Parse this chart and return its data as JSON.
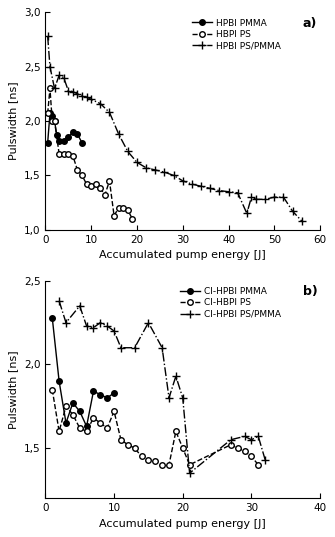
{
  "panel_a": {
    "title": "a)",
    "xlabel": "Accumulated pump energy [J]",
    "ylabel": "Pulswidth [ns]",
    "xlim": [
      0,
      60
    ],
    "ylim": [
      1.0,
      3.0
    ],
    "xticks": [
      0,
      10,
      20,
      30,
      40,
      50,
      60
    ],
    "yticks": [
      1.0,
      1.5,
      2.0,
      2.5,
      3.0
    ],
    "series": [
      {
        "label": "HPBI PMMA",
        "x": [
          0.5,
          1.0,
          1.5,
          2.0,
          2.5,
          3.0,
          4.0,
          5.0,
          6.0,
          7.0,
          8.0
        ],
        "y": [
          1.8,
          2.07,
          2.05,
          2.0,
          1.87,
          1.82,
          1.82,
          1.85,
          1.9,
          1.88,
          1.8
        ],
        "color": "black",
        "marker": "o",
        "markerfacecolor": "black",
        "linestyle": "-",
        "linewidth": 1.0,
        "markersize": 4
      },
      {
        "label": "HBPI PS",
        "x": [
          0.5,
          1.0,
          1.5,
          2.0,
          3.0,
          4.0,
          5.0,
          6.0,
          7.0,
          8.0,
          9.0,
          10.0,
          11.0,
          12.0,
          13.0,
          14.0,
          15.0,
          16.0,
          17.0,
          18.0,
          19.0
        ],
        "y": [
          2.07,
          2.3,
          2.0,
          2.0,
          1.7,
          1.7,
          1.7,
          1.68,
          1.55,
          1.5,
          1.42,
          1.4,
          1.42,
          1.38,
          1.32,
          1.45,
          1.13,
          1.2,
          1.2,
          1.18,
          1.1
        ],
        "color": "black",
        "marker": "o",
        "markerfacecolor": "white",
        "linestyle": "--",
        "linewidth": 1.0,
        "markersize": 4
      },
      {
        "label": "HPBI PS/PMMA",
        "x": [
          0.5,
          1.0,
          2.0,
          3.0,
          4.0,
          5.0,
          6.0,
          7.0,
          8.0,
          9.0,
          10.0,
          12.0,
          14.0,
          16.0,
          18.0,
          20.0,
          22.0,
          24.0,
          26.0,
          28.0,
          30.0,
          32.0,
          34.0,
          36.0,
          38.0,
          40.0,
          42.0,
          44.0,
          45.0,
          46.0,
          48.0,
          50.0,
          52.0,
          54.0,
          56.0
        ],
        "y": [
          2.78,
          2.5,
          2.3,
          2.42,
          2.4,
          2.28,
          2.27,
          2.25,
          2.23,
          2.22,
          2.2,
          2.16,
          2.08,
          1.88,
          1.72,
          1.62,
          1.57,
          1.55,
          1.53,
          1.5,
          1.45,
          1.42,
          1.4,
          1.38,
          1.36,
          1.35,
          1.34,
          1.15,
          1.3,
          1.28,
          1.28,
          1.3,
          1.3,
          1.17,
          1.08
        ],
        "color": "black",
        "marker": "+",
        "markerfacecolor": "black",
        "linestyle": "-.",
        "linewidth": 1.0,
        "markersize": 6
      }
    ]
  },
  "panel_b": {
    "title": "b)",
    "xlabel": "Accumulated pump energy [J]",
    "ylabel": "Pulswidth [ns]",
    "xlim": [
      0,
      40
    ],
    "ylim": [
      1.2,
      2.5
    ],
    "xticks": [
      0,
      10,
      20,
      30,
      40
    ],
    "yticks": [
      1.5,
      2.0,
      2.5
    ],
    "series": [
      {
        "label": "CI-HPBI PMMA",
        "x": [
          1.0,
          2.0,
          3.0,
          4.0,
          5.0,
          6.0,
          7.0,
          8.0,
          9.0,
          10.0
        ],
        "y": [
          2.28,
          1.9,
          1.65,
          1.77,
          1.72,
          1.63,
          1.84,
          1.82,
          1.8,
          1.83
        ],
        "color": "black",
        "marker": "o",
        "markerfacecolor": "black",
        "linestyle": "-",
        "linewidth": 1.0,
        "markersize": 4
      },
      {
        "label": "CI-HBPI PS",
        "x": [
          1.0,
          2.0,
          3.0,
          4.0,
          5.0,
          6.0,
          7.0,
          8.0,
          9.0,
          10.0,
          11.0,
          12.0,
          13.0,
          14.0,
          15.0,
          16.0,
          17.0,
          18.0,
          19.0,
          20.0,
          21.0,
          27.0,
          28.0,
          29.0,
          30.0,
          31.0
        ],
        "y": [
          1.85,
          1.6,
          1.75,
          1.7,
          1.62,
          1.6,
          1.68,
          1.65,
          1.62,
          1.72,
          1.55,
          1.52,
          1.5,
          1.45,
          1.43,
          1.42,
          1.4,
          1.4,
          1.6,
          1.5,
          1.4,
          1.52,
          1.5,
          1.48,
          1.45,
          1.4
        ],
        "color": "black",
        "marker": "o",
        "markerfacecolor": "white",
        "linestyle": "--",
        "linewidth": 1.0,
        "markersize": 4
      },
      {
        "label": "CI-HPBI PS/PMMA",
        "x": [
          2.0,
          3.0,
          5.0,
          6.0,
          7.0,
          8.0,
          9.0,
          10.0,
          11.0,
          13.0,
          15.0,
          17.0,
          18.0,
          19.0,
          20.0,
          21.0,
          27.0,
          29.0,
          30.0,
          31.0,
          32.0
        ],
        "y": [
          2.38,
          2.25,
          2.35,
          2.23,
          2.22,
          2.25,
          2.23,
          2.2,
          2.1,
          2.1,
          2.25,
          2.1,
          1.8,
          1.93,
          1.8,
          1.35,
          1.55,
          1.57,
          1.55,
          1.57,
          1.43
        ],
        "color": "black",
        "marker": "+",
        "markerfacecolor": "black",
        "linestyle": "-.",
        "linewidth": 1.0,
        "markersize": 6
      }
    ]
  }
}
